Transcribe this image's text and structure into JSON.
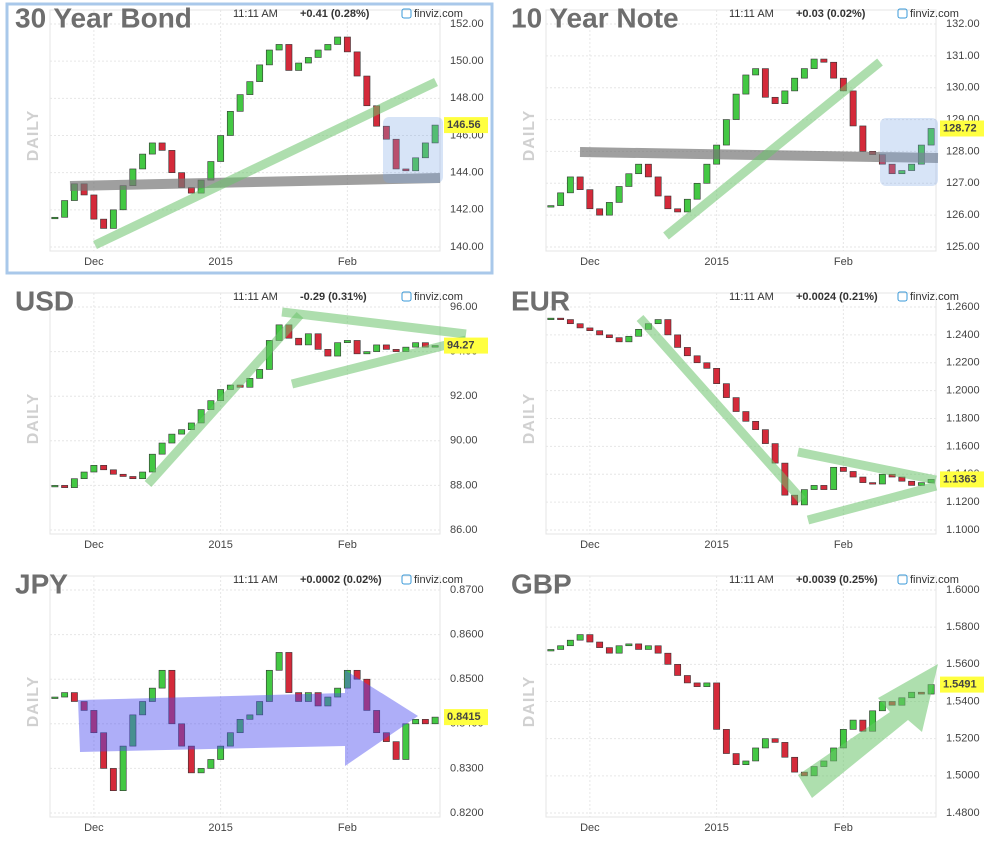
{
  "chart_data": [
    {
      "type": "candlestick",
      "title": "30 Year Bond",
      "time": "11:11 AM",
      "change": "+0.41 (0.28%)",
      "change_color": "#1e9e1e",
      "source": "finviz.com",
      "ylabel": "DAILY",
      "up_color": "#43c843",
      "down_color": "#d42a3a",
      "grid": true,
      "categories": [
        null,
        null,
        null,
        null,
        "Dec",
        null,
        null,
        null,
        null,
        null,
        null,
        null,
        null,
        null,
        null,
        null,
        null,
        "2015",
        null,
        null,
        null,
        null,
        null,
        null,
        null,
        null,
        null,
        null,
        null,
        null,
        "Feb",
        null,
        null,
        null,
        null,
        null,
        null,
        null,
        null,
        null
      ],
      "values": [
        141.6,
        142.5,
        143.4,
        142.8,
        141.5,
        141.0,
        142.0,
        143.3,
        144.2,
        145.0,
        145.6,
        145.2,
        144.0,
        143.2,
        142.9,
        143.6,
        144.6,
        146.0,
        147.3,
        148.2,
        148.9,
        149.8,
        150.6,
        150.9,
        149.5,
        149.9,
        150.2,
        150.6,
        150.9,
        151.3,
        150.5,
        149.2,
        147.6,
        146.5,
        145.8,
        144.2,
        144.1,
        144.8,
        145.6,
        146.56
      ],
      "value_labels": [
        null,
        null,
        null,
        null,
        null,
        null,
        null,
        null,
        null,
        null,
        null,
        null,
        null,
        null,
        null,
        null,
        null,
        null,
        null,
        null,
        null,
        null,
        null,
        null,
        null,
        null,
        null,
        null,
        null,
        null,
        null,
        null,
        null,
        null,
        null,
        null,
        null,
        null,
        null,
        "146.56"
      ],
      "ylim": [
        140,
        152
      ],
      "yticks": [
        {
          "value": 140,
          "label": "140.00"
        },
        {
          "value": 142,
          "label": "142.00"
        },
        {
          "value": 144,
          "label": "144.00"
        },
        {
          "value": 146,
          "label": "146.00"
        },
        {
          "value": 148,
          "label": "148.00"
        },
        {
          "value": 150,
          "label": "150.00"
        },
        {
          "value": 152,
          "label": "152.00"
        }
      ]
    },
    {
      "type": "candlestick",
      "title": "10 Year Note",
      "time": "11:11 AM",
      "change": "+0.03 (0.02%)",
      "change_color": "#1e9e1e",
      "source": "finviz.com",
      "ylabel": "DAILY",
      "up_color": "#43c843",
      "down_color": "#d42a3a",
      "grid": true,
      "categories": [
        null,
        null,
        null,
        null,
        "Dec",
        null,
        null,
        null,
        null,
        null,
        null,
        null,
        null,
        null,
        null,
        null,
        null,
        "2015",
        null,
        null,
        null,
        null,
        null,
        null,
        null,
        null,
        null,
        null,
        null,
        null,
        "Feb",
        null,
        null,
        null,
        null,
        null,
        null,
        null,
        null,
        null
      ],
      "values": [
        126.3,
        126.7,
        127.2,
        126.8,
        126.2,
        126.0,
        126.4,
        126.9,
        127.3,
        127.6,
        127.2,
        126.6,
        126.2,
        126.1,
        126.5,
        127.0,
        127.6,
        128.2,
        129.0,
        129.8,
        130.4,
        130.6,
        129.7,
        129.5,
        129.9,
        130.3,
        130.6,
        130.9,
        130.8,
        130.3,
        129.9,
        128.8,
        128.0,
        127.9,
        127.6,
        127.3,
        127.4,
        127.6,
        128.2,
        128.72
      ],
      "value_labels": [
        null,
        null,
        null,
        null,
        null,
        null,
        null,
        null,
        null,
        null,
        null,
        null,
        null,
        null,
        null,
        null,
        null,
        null,
        null,
        null,
        null,
        null,
        null,
        null,
        null,
        null,
        null,
        null,
        null,
        null,
        null,
        null,
        null,
        null,
        null,
        null,
        null,
        null,
        null,
        "128.72"
      ],
      "ylim": [
        125,
        132
      ],
      "yticks": [
        {
          "value": 125,
          "label": "125.00"
        },
        {
          "value": 126,
          "label": "126.00"
        },
        {
          "value": 127,
          "label": "127.00"
        },
        {
          "value": 128,
          "label": "128.00"
        },
        {
          "value": 129,
          "label": "129.00"
        },
        {
          "value": 130,
          "label": "130.00"
        },
        {
          "value": 131,
          "label": "131.00"
        },
        {
          "value": 132,
          "label": "132.00"
        }
      ]
    },
    {
      "type": "candlestick",
      "title": "USD",
      "time": "11:11 AM",
      "change": "-0.29 (0.31%)",
      "change_color": "#d42020",
      "source": "finviz.com",
      "ylabel": "DAILY",
      "up_color": "#43c843",
      "down_color": "#d42a3a",
      "grid": true,
      "categories": [
        null,
        null,
        null,
        null,
        "Dec",
        null,
        null,
        null,
        null,
        null,
        null,
        null,
        null,
        null,
        null,
        null,
        null,
        "2015",
        null,
        null,
        null,
        null,
        null,
        null,
        null,
        null,
        null,
        null,
        null,
        null,
        "Feb",
        null,
        null,
        null,
        null,
        null,
        null,
        null,
        null,
        null
      ],
      "values": [
        88.0,
        87.9,
        88.3,
        88.6,
        88.9,
        88.7,
        88.5,
        88.4,
        88.3,
        88.6,
        89.4,
        89.9,
        90.3,
        90.5,
        90.8,
        91.4,
        91.8,
        92.3,
        92.5,
        92.4,
        92.8,
        93.2,
        94.5,
        95.2,
        94.6,
        94.3,
        94.8,
        94.1,
        93.8,
        94.4,
        94.5,
        93.9,
        94.0,
        94.3,
        94.1,
        94.0,
        94.2,
        94.4,
        94.2,
        94.27
      ],
      "value_labels": [
        null,
        null,
        null,
        null,
        null,
        null,
        null,
        null,
        null,
        null,
        null,
        null,
        null,
        null,
        null,
        null,
        null,
        null,
        null,
        null,
        null,
        null,
        null,
        null,
        null,
        null,
        null,
        null,
        null,
        null,
        null,
        null,
        null,
        null,
        null,
        null,
        null,
        null,
        null,
        "94.27"
      ],
      "ylim": [
        86,
        96
      ],
      "yticks": [
        {
          "value": 86,
          "label": "86.00"
        },
        {
          "value": 88,
          "label": "88.00"
        },
        {
          "value": 90,
          "label": "90.00"
        },
        {
          "value": 92,
          "label": "92.00"
        },
        {
          "value": 94,
          "label": "94.00"
        },
        {
          "value": 96,
          "label": "96.00"
        }
      ]
    },
    {
      "type": "candlestick",
      "title": "EUR",
      "time": "11:11 AM",
      "change": "+0.0024 (0.21%)",
      "change_color": "#1e9e1e",
      "source": "finviz.com",
      "ylabel": "DAILY",
      "up_color": "#43c843",
      "down_color": "#d42a3a",
      "grid": true,
      "categories": [
        null,
        null,
        null,
        null,
        "Dec",
        null,
        null,
        null,
        null,
        null,
        null,
        null,
        null,
        null,
        null,
        null,
        null,
        "2015",
        null,
        null,
        null,
        null,
        null,
        null,
        null,
        null,
        null,
        null,
        null,
        null,
        "Feb",
        null,
        null,
        null,
        null,
        null,
        null,
        null,
        null,
        null
      ],
      "values": [
        1.252,
        1.251,
        1.248,
        1.245,
        1.243,
        1.24,
        1.238,
        1.235,
        1.239,
        1.244,
        1.248,
        1.251,
        1.24,
        1.231,
        1.225,
        1.22,
        1.216,
        1.205,
        1.195,
        1.185,
        1.178,
        1.172,
        1.162,
        1.148,
        1.125,
        1.118,
        1.129,
        1.132,
        1.129,
        1.145,
        1.142,
        1.138,
        1.134,
        1.133,
        1.14,
        1.138,
        1.135,
        1.132,
        1.134,
        1.1363
      ],
      "value_labels": [
        null,
        null,
        null,
        null,
        null,
        null,
        null,
        null,
        null,
        null,
        null,
        null,
        null,
        null,
        null,
        null,
        null,
        null,
        null,
        null,
        null,
        null,
        null,
        null,
        null,
        null,
        null,
        null,
        null,
        null,
        null,
        null,
        null,
        null,
        null,
        null,
        null,
        null,
        null,
        "1.1363"
      ],
      "ylim": [
        1.1,
        1.26
      ],
      "yticks": [
        {
          "value": 1.1,
          "label": "1.1000"
        },
        {
          "value": 1.12,
          "label": "1.1200"
        },
        {
          "value": 1.14,
          "label": "1.1400"
        },
        {
          "value": 1.16,
          "label": "1.1600"
        },
        {
          "value": 1.18,
          "label": "1.1800"
        },
        {
          "value": 1.2,
          "label": "1.2000"
        },
        {
          "value": 1.22,
          "label": "1.2200"
        },
        {
          "value": 1.24,
          "label": "1.2400"
        },
        {
          "value": 1.26,
          "label": "1.2600"
        }
      ]
    },
    {
      "type": "candlestick",
      "title": "JPY",
      "time": "11:11 AM",
      "change": "+0.0002 (0.02%)",
      "change_color": "#1e9e1e",
      "source": "finviz.com",
      "ylabel": "DAILY",
      "up_color": "#43c843",
      "down_color": "#d42a3a",
      "grid": true,
      "categories": [
        null,
        null,
        null,
        null,
        "Dec",
        null,
        null,
        null,
        null,
        null,
        null,
        null,
        null,
        null,
        null,
        null,
        null,
        "2015",
        null,
        null,
        null,
        null,
        null,
        null,
        null,
        null,
        null,
        null,
        null,
        null,
        "Feb",
        null,
        null,
        null,
        null,
        null,
        null,
        null,
        null,
        null
      ],
      "values": [
        0.846,
        0.847,
        0.845,
        0.843,
        0.838,
        0.83,
        0.825,
        0.835,
        0.842,
        0.845,
        0.848,
        0.852,
        0.84,
        0.835,
        0.829,
        0.83,
        0.832,
        0.835,
        0.838,
        0.841,
        0.842,
        0.845,
        0.852,
        0.856,
        0.847,
        0.845,
        0.847,
        0.844,
        0.846,
        0.848,
        0.852,
        0.85,
        0.843,
        0.838,
        0.836,
        0.832,
        0.84,
        0.841,
        0.84,
        0.8415
      ],
      "value_labels": [
        null,
        null,
        null,
        null,
        null,
        null,
        null,
        null,
        null,
        null,
        null,
        null,
        null,
        null,
        null,
        null,
        null,
        null,
        null,
        null,
        null,
        null,
        null,
        null,
        null,
        null,
        null,
        null,
        null,
        null,
        null,
        null,
        null,
        null,
        null,
        null,
        null,
        null,
        null,
        "0.8415"
      ],
      "ylim": [
        0.82,
        0.87
      ],
      "yticks": [
        {
          "value": 0.82,
          "label": "0.8200"
        },
        {
          "value": 0.83,
          "label": "0.8300"
        },
        {
          "value": 0.84,
          "label": "0.8400"
        },
        {
          "value": 0.85,
          "label": "0.8500"
        },
        {
          "value": 0.86,
          "label": "0.8600"
        },
        {
          "value": 0.87,
          "label": "0.8700"
        }
      ]
    },
    {
      "type": "candlestick",
      "title": "GBP",
      "time": "11:11 AM",
      "change": "+0.0039 (0.25%)",
      "change_color": "#1e9e1e",
      "source": "finviz.com",
      "ylabel": "DAILY",
      "up_color": "#43c843",
      "down_color": "#d42a3a",
      "grid": true,
      "categories": [
        null,
        null,
        null,
        null,
        "Dec",
        null,
        null,
        null,
        null,
        null,
        null,
        null,
        null,
        null,
        null,
        null,
        null,
        "2015",
        null,
        null,
        null,
        null,
        null,
        null,
        null,
        null,
        null,
        null,
        null,
        null,
        "Feb",
        null,
        null,
        null,
        null,
        null,
        null,
        null,
        null,
        null
      ],
      "values": [
        1.568,
        1.57,
        1.573,
        1.576,
        1.572,
        1.569,
        1.566,
        1.57,
        1.571,
        1.568,
        1.57,
        1.566,
        1.56,
        1.554,
        1.55,
        1.548,
        1.55,
        1.525,
        1.512,
        1.506,
        1.508,
        1.515,
        1.52,
        1.518,
        1.51,
        1.502,
        1.5,
        1.505,
        1.508,
        1.515,
        1.525,
        1.53,
        1.524,
        1.535,
        1.54,
        1.538,
        1.542,
        1.545,
        1.544,
        1.5491
      ],
      "value_labels": [
        null,
        null,
        null,
        null,
        null,
        null,
        null,
        null,
        null,
        null,
        null,
        null,
        null,
        null,
        null,
        null,
        null,
        null,
        null,
        null,
        null,
        null,
        null,
        null,
        null,
        null,
        null,
        null,
        null,
        null,
        null,
        null,
        null,
        null,
        null,
        null,
        null,
        null,
        null,
        "1.5491"
      ],
      "ylim": [
        1.48,
        1.6
      ],
      "yticks": [
        {
          "value": 1.48,
          "label": "1.4800"
        },
        {
          "value": 1.5,
          "label": "1.5000"
        },
        {
          "value": 1.52,
          "label": "1.5200"
        },
        {
          "value": 1.54,
          "label": "1.5400"
        },
        {
          "value": 1.56,
          "label": "1.5600"
        },
        {
          "value": 1.58,
          "label": "1.5800"
        },
        {
          "value": 1.6,
          "label": "1.6000"
        }
      ]
    }
  ]
}
